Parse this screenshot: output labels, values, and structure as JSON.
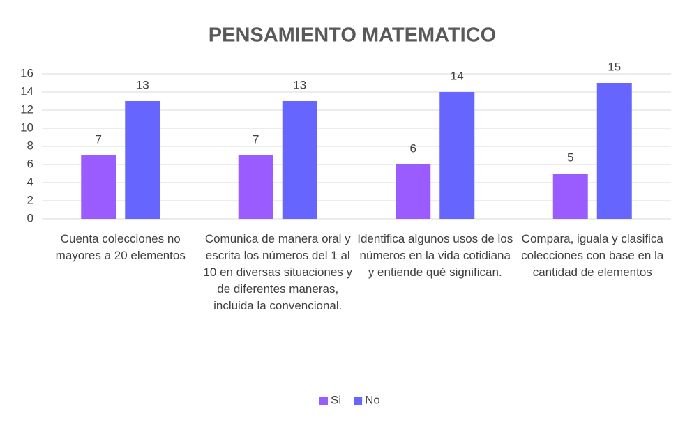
{
  "chart_data": {
    "type": "bar",
    "title": "PENSAMIENTO MATEMATICO",
    "categories": [
      "Cuenta colecciones no mayores a 20 elementos",
      "Comunica de manera oral y escrita los números del 1 al 10 en diversas situaciones y de diferentes maneras, incluida la convencional.",
      "Identifica algunos usos de los números en la vida cotidiana y entiende qué significan.",
      "Compara, iguala y clasifica colecciones con base en la cantidad de elementos"
    ],
    "series": [
      {
        "name": "Si",
        "color": "#9b5cff",
        "values": [
          7,
          7,
          6,
          5
        ]
      },
      {
        "name": "No",
        "color": "#6666ff",
        "values": [
          13,
          13,
          14,
          15
        ]
      }
    ],
    "ylim": [
      0,
      16
    ],
    "yticks": [
      0,
      2,
      4,
      6,
      8,
      10,
      12,
      14,
      16
    ],
    "grid": true,
    "legend": "bottom"
  }
}
